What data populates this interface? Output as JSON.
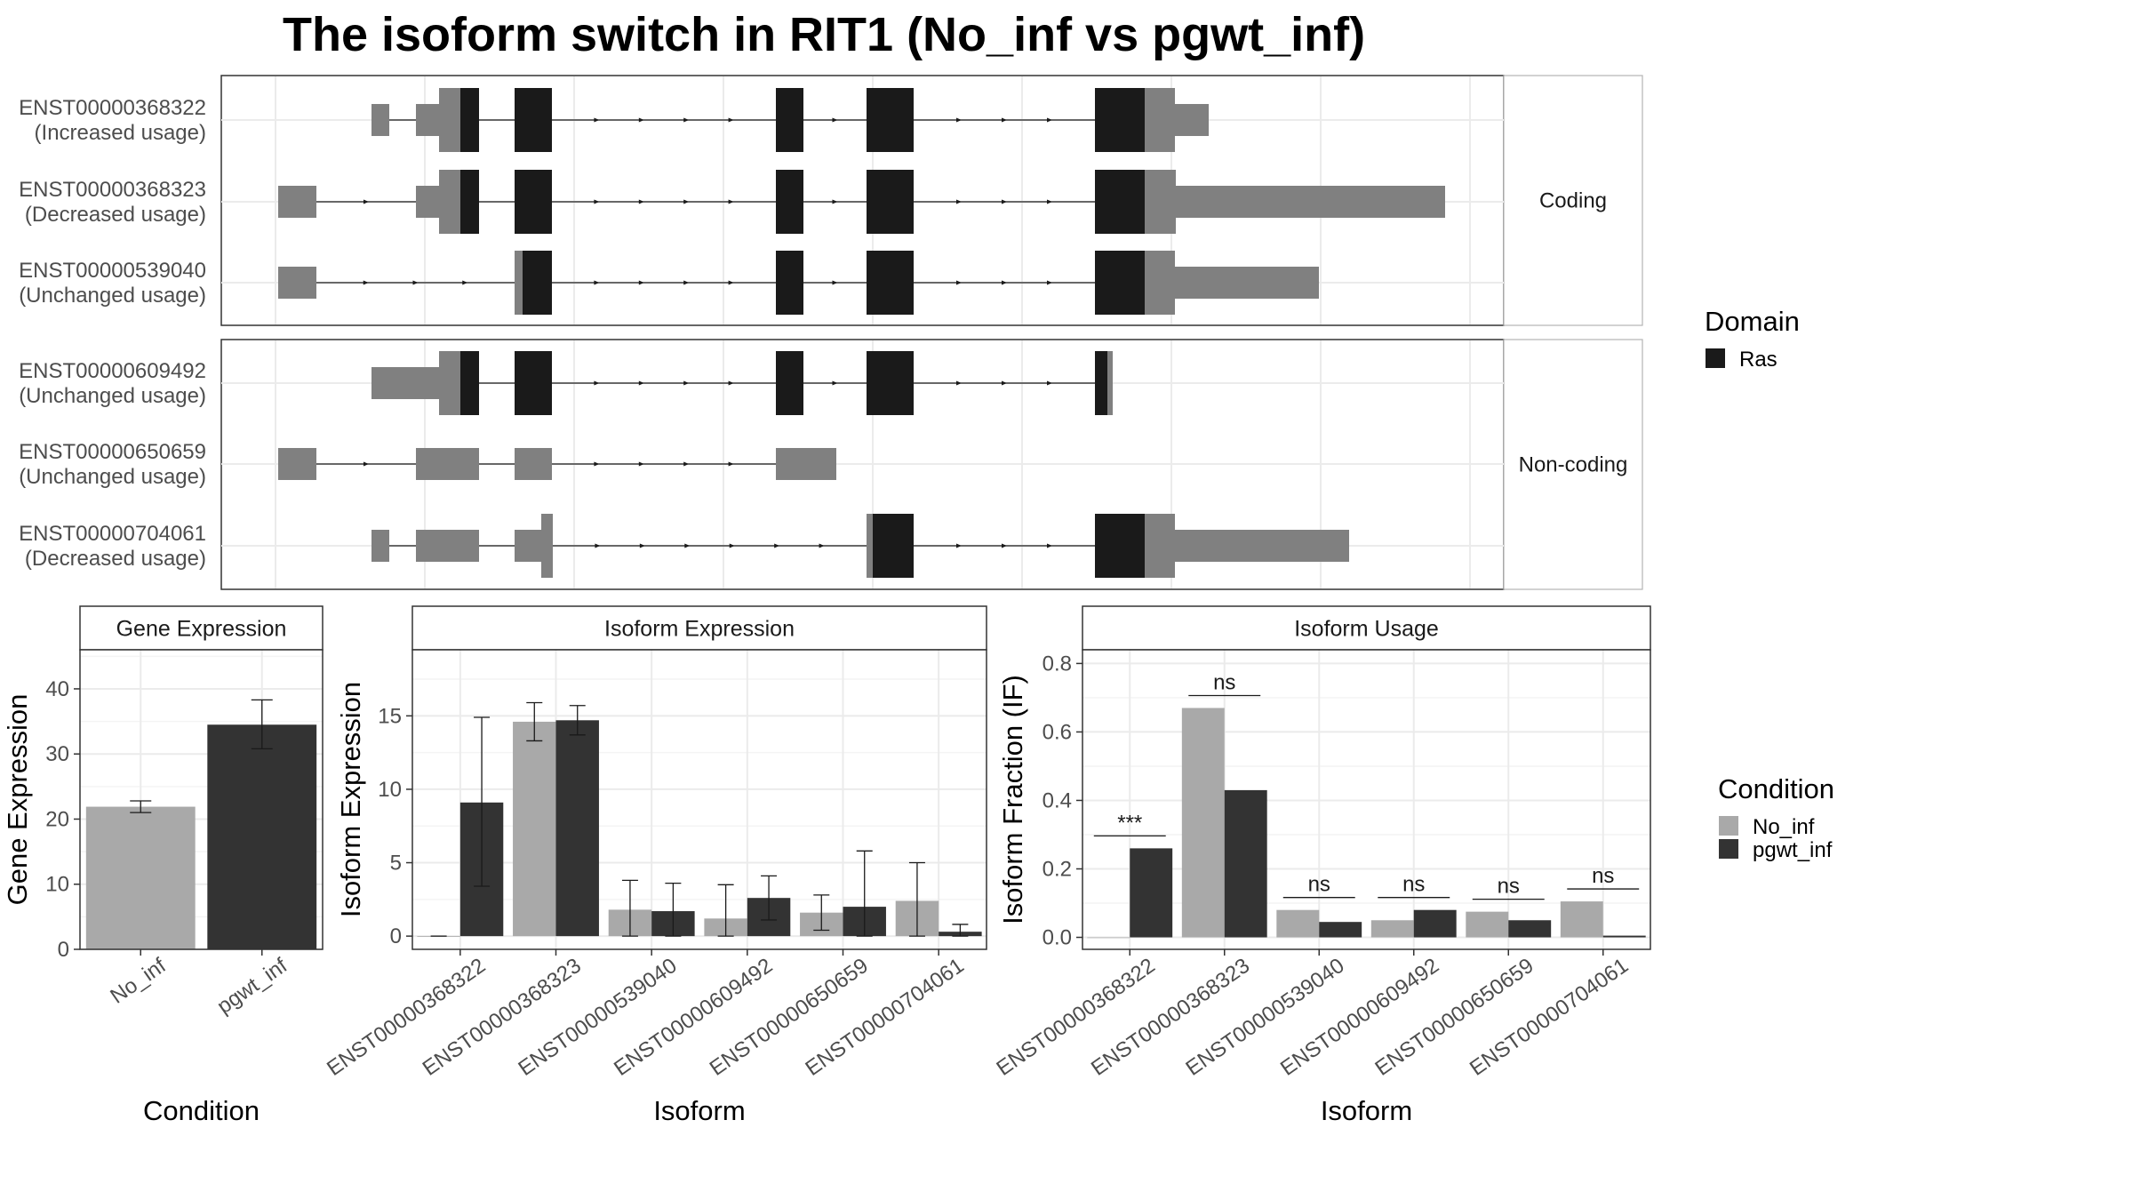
{
  "title": "The isoform switch in RIT1 (No_inf vs pgwt_inf)",
  "colors": {
    "no_inf": "#a9a9a9",
    "pgwt_inf": "#333333",
    "domain": "#1a1a1a",
    "utr": "#808080",
    "grid": "#ebebeb",
    "border": "#333333",
    "strip": "#ffffff"
  },
  "structure": {
    "facets": [
      "Coding",
      "Non-coding"
    ],
    "isoforms": [
      {
        "id": "ENST00000368322",
        "usage": "(Increased usage)",
        "facet": "Coding"
      },
      {
        "id": "ENST00000368323",
        "usage": "(Decreased usage)",
        "facet": "Coding"
      },
      {
        "id": "ENST00000539040",
        "usage": "(Unchanged usage)",
        "facet": "Coding"
      },
      {
        "id": "ENST00000609492",
        "usage": "(Unchanged usage)",
        "facet": "Non-coding"
      },
      {
        "id": "ENST00000650659",
        "usage": "(Unchanged usage)",
        "facet": "Non-coding"
      },
      {
        "id": "ENST00000704061",
        "usage": "(Decreased usage)",
        "facet": "Non-coding"
      }
    ]
  },
  "legend_domain": {
    "title": "Domain",
    "items": [
      "Ras"
    ]
  },
  "legend_condition": {
    "title": "Condition",
    "items": [
      "No_inf",
      "pgwt_inf"
    ]
  },
  "chart_data": [
    {
      "type": "bar",
      "title": "Gene Expression",
      "xlabel": "Condition",
      "ylabel": "Gene Expression",
      "categories": [
        "No_inf",
        "pgwt_inf"
      ],
      "values": [
        21.9,
        34.5
      ],
      "error": [
        [
          21.0,
          22.8
        ],
        [
          30.8,
          38.3
        ]
      ],
      "ylim": [
        0,
        46
      ],
      "yticks": [
        0,
        10,
        20,
        30,
        40
      ]
    },
    {
      "type": "bar",
      "title": "Isoform Expression",
      "xlabel": "Isoform",
      "ylabel": "Isoform Expression",
      "categories": [
        "ENST00000368322",
        "ENST00000368323",
        "ENST00000539040",
        "ENST00000609492",
        "ENST00000650659",
        "ENST00000704061"
      ],
      "series": [
        {
          "name": "No_inf",
          "values": [
            0.0,
            14.6,
            1.8,
            1.2,
            1.6,
            2.4
          ],
          "error": [
            [
              0.0,
              0.0
            ],
            [
              13.3,
              15.9
            ],
            [
              0.0,
              3.8
            ],
            [
              0.0,
              3.5
            ],
            [
              0.4,
              2.8
            ],
            [
              0.0,
              5.0
            ]
          ]
        },
        {
          "name": "pgwt_inf",
          "values": [
            9.1,
            14.7,
            1.7,
            2.6,
            2.0,
            0.3
          ],
          "error": [
            [
              3.4,
              14.9
            ],
            [
              13.7,
              15.7
            ],
            [
              0.0,
              3.6
            ],
            [
              1.1,
              4.1
            ],
            [
              0.0,
              5.8
            ],
            [
              0.0,
              0.8
            ]
          ]
        }
      ],
      "ylim": [
        -0.9,
        19.5
      ],
      "yticks": [
        0,
        5,
        10,
        15
      ]
    },
    {
      "type": "bar",
      "title": "Isoform Usage",
      "xlabel": "Isoform",
      "ylabel": "Isoform Fraction (IF)",
      "categories": [
        "ENST00000368322",
        "ENST00000368323",
        "ENST00000539040",
        "ENST00000609492",
        "ENST00000650659",
        "ENST00000704061"
      ],
      "series": [
        {
          "name": "No_inf",
          "values": [
            0.0,
            0.67,
            0.08,
            0.05,
            0.075,
            0.105
          ]
        },
        {
          "name": "pgwt_inf",
          "values": [
            0.26,
            0.43,
            0.045,
            0.08,
            0.05,
            0.005
          ]
        }
      ],
      "significance": [
        "***",
        "ns",
        "ns",
        "ns",
        "ns",
        "ns"
      ],
      "ylim": [
        -0.035,
        0.84
      ],
      "yticks": [
        0.0,
        0.2,
        0.4,
        0.6,
        0.8
      ],
      "ytick_labels": [
        "0.0",
        "0.2",
        "0.4",
        "0.6",
        "0.8"
      ]
    }
  ]
}
